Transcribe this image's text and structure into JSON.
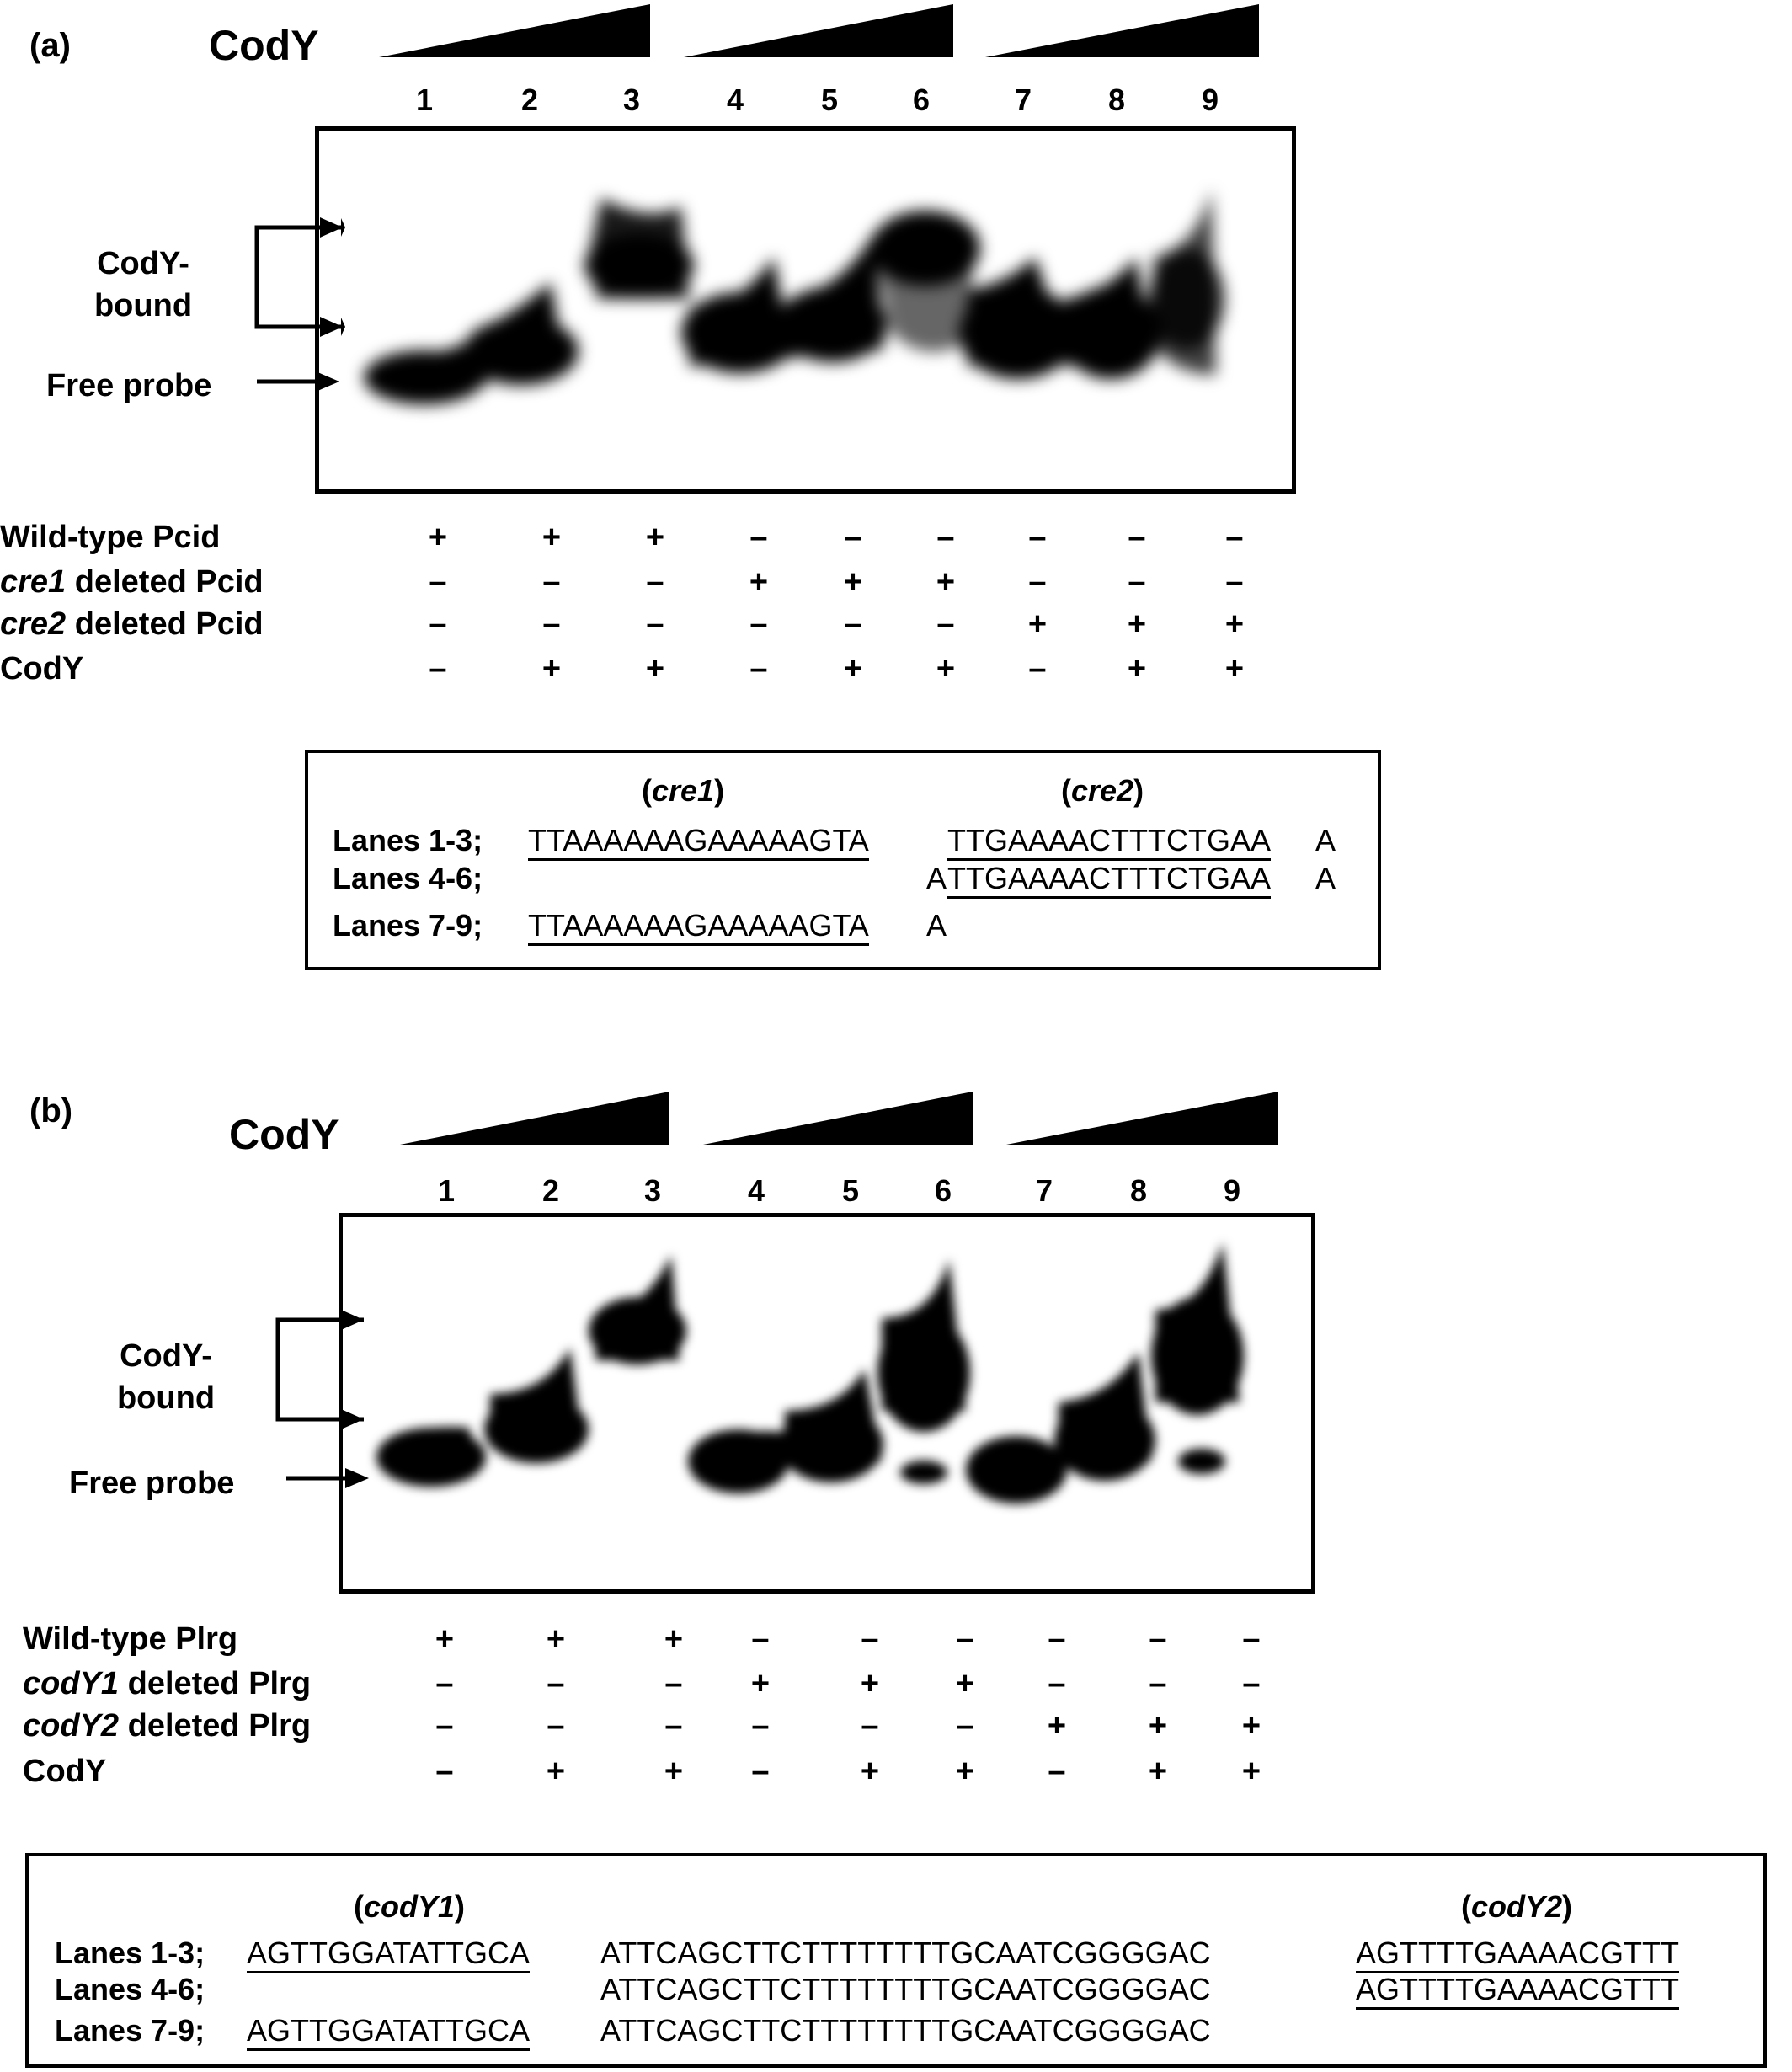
{
  "panel_a": {
    "label": "(a)",
    "title": "CodY",
    "lanes": [
      "1",
      "2",
      "3",
      "4",
      "5",
      "6",
      "7",
      "8",
      "9"
    ],
    "bound_label_line1": "CodY-",
    "bound_label_line2": "bound",
    "free_label": "Free probe",
    "rows": [
      {
        "label_italic": "",
        "label_rest": "Wild-type Pcid",
        "signs": [
          "+",
          "+",
          "+",
          "–",
          "–",
          "–",
          "–",
          "–",
          "–"
        ]
      },
      {
        "label_italic": "cre1",
        "label_rest": " deleted Pcid",
        "signs": [
          "–",
          "–",
          "–",
          "+",
          "+",
          "+",
          "–",
          "–",
          "–"
        ]
      },
      {
        "label_italic": "cre2",
        "label_rest": " deleted Pcid",
        "signs": [
          "–",
          "–",
          "–",
          "–",
          "–",
          "–",
          "+",
          "+",
          "+"
        ]
      },
      {
        "label_italic": "",
        "label_rest": "CodY",
        "signs": [
          "–",
          "+",
          "+",
          "–",
          "+",
          "+",
          "–",
          "+",
          "+"
        ]
      }
    ],
    "seq": {
      "site1": "cre1",
      "site2": "cre2",
      "lanes_1_3_label": "Lanes 1-3;",
      "lanes_4_6_label": "Lanes 4-6;",
      "lanes_7_9_label": "Lanes 7-9;",
      "s1": "TTAAAAAAGAAAAAGTA",
      "mid": "A",
      "s2": "TTGAAAACTTTCTGAA",
      "tail": "A",
      "l2_lead": "A",
      "l2_s2": "TTGAAAACTTTCTGAA",
      "l2_tail": "A",
      "l3_s1": "TTAAAAAAGAAAAAGTA",
      "l3_tail": "A"
    }
  },
  "panel_b": {
    "label": "(b)",
    "title": "CodY",
    "lanes": [
      "1",
      "2",
      "3",
      "4",
      "5",
      "6",
      "7",
      "8",
      "9"
    ],
    "bound_label_line1": "CodY-",
    "bound_label_line2": "bound",
    "free_label": "Free probe",
    "rows": [
      {
        "label_italic": "",
        "label_rest": "Wild-type Plrg",
        "signs": [
          "+",
          "+",
          "+",
          "–",
          "–",
          "–",
          "–",
          "–",
          "–"
        ]
      },
      {
        "label_italic": "codY1",
        "label_rest": " deleted Plrg",
        "signs": [
          "–",
          "–",
          "–",
          "+",
          "+",
          "+",
          "–",
          "–",
          "–"
        ]
      },
      {
        "label_italic": "codY2",
        "label_rest": " deleted Plrg",
        "signs": [
          "–",
          "–",
          "–",
          "–",
          "–",
          "–",
          "+",
          "+",
          "+"
        ]
      },
      {
        "label_italic": "",
        "label_rest": "CodY",
        "signs": [
          "–",
          "+",
          "+",
          "–",
          "+",
          "+",
          "–",
          "+",
          "+"
        ]
      }
    ],
    "seq": {
      "site1": "codY1",
      "site2": "codY2",
      "lanes_1_3_label": "Lanes 1-3;",
      "lanes_4_6_label": "Lanes 4-6;",
      "lanes_7_9_label": "Lanes 7-9;",
      "s1": "AGTTGGATATTGCA",
      "mid": "ATTCAGCTTCTTTTTTTTGCAATCGGGGAC",
      "s2": "AGTTTTGAAAACGTTT",
      "l2_mid": "ATTCAGCTTCTTTTTTTTGCAATCGGGGAC",
      "l2_s2": "AGTTTTGAAAACGTTT",
      "l3_s1": "AGTTGGATATTGCA",
      "l3_mid": "ATTCAGCTTCTTTTTTTTGCAATCGGGGAC"
    }
  }
}
